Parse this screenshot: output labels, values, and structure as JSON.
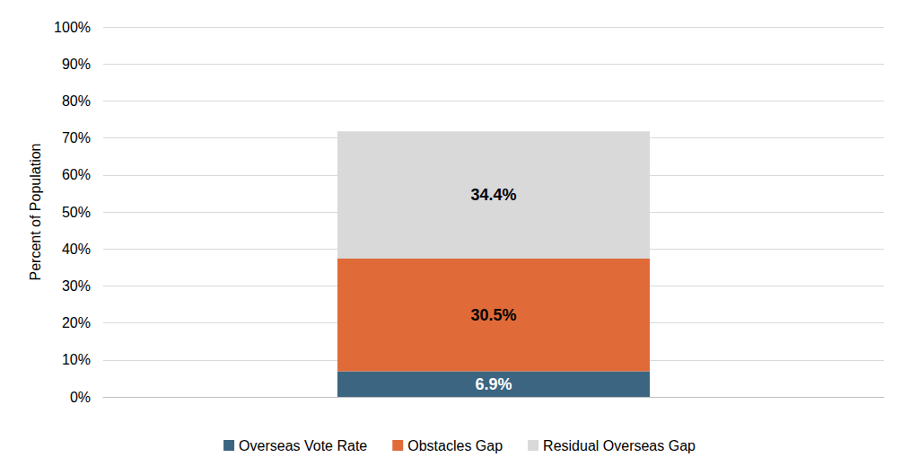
{
  "chart_data": {
    "type": "bar",
    "stacked": true,
    "data_labels": true,
    "grid": true,
    "legend": "bottom",
    "y_label": "Percent of Population",
    "categories": [
      null
    ],
    "ylim": [
      0,
      100
    ],
    "yticks": [
      {
        "value": 0,
        "label": "0%"
      },
      {
        "value": 10,
        "label": "10%"
      },
      {
        "value": 20,
        "label": "20%"
      },
      {
        "value": 30,
        "label": "30%"
      },
      {
        "value": 40,
        "label": "40%"
      },
      {
        "value": 50,
        "label": "50%"
      },
      {
        "value": 60,
        "label": "60%"
      },
      {
        "value": 70,
        "label": "70%"
      },
      {
        "value": 80,
        "label": "80%"
      },
      {
        "value": 90,
        "label": "90%"
      },
      {
        "value": 100,
        "label": "100%"
      }
    ],
    "series": [
      {
        "name": "Overseas Vote Rate",
        "color": "#3b6580",
        "values": [
          6.9
        ],
        "value_labels": [
          "6.9%"
        ]
      },
      {
        "name": "Obstacles Gap",
        "color": "#e06b38",
        "values": [
          30.5
        ],
        "value_labels": [
          "30.5%"
        ]
      },
      {
        "name": "Residual Overseas Gap",
        "color": "#d9d9d9",
        "values": [
          34.4
        ],
        "value_labels": [
          "34.4%"
        ]
      }
    ]
  }
}
